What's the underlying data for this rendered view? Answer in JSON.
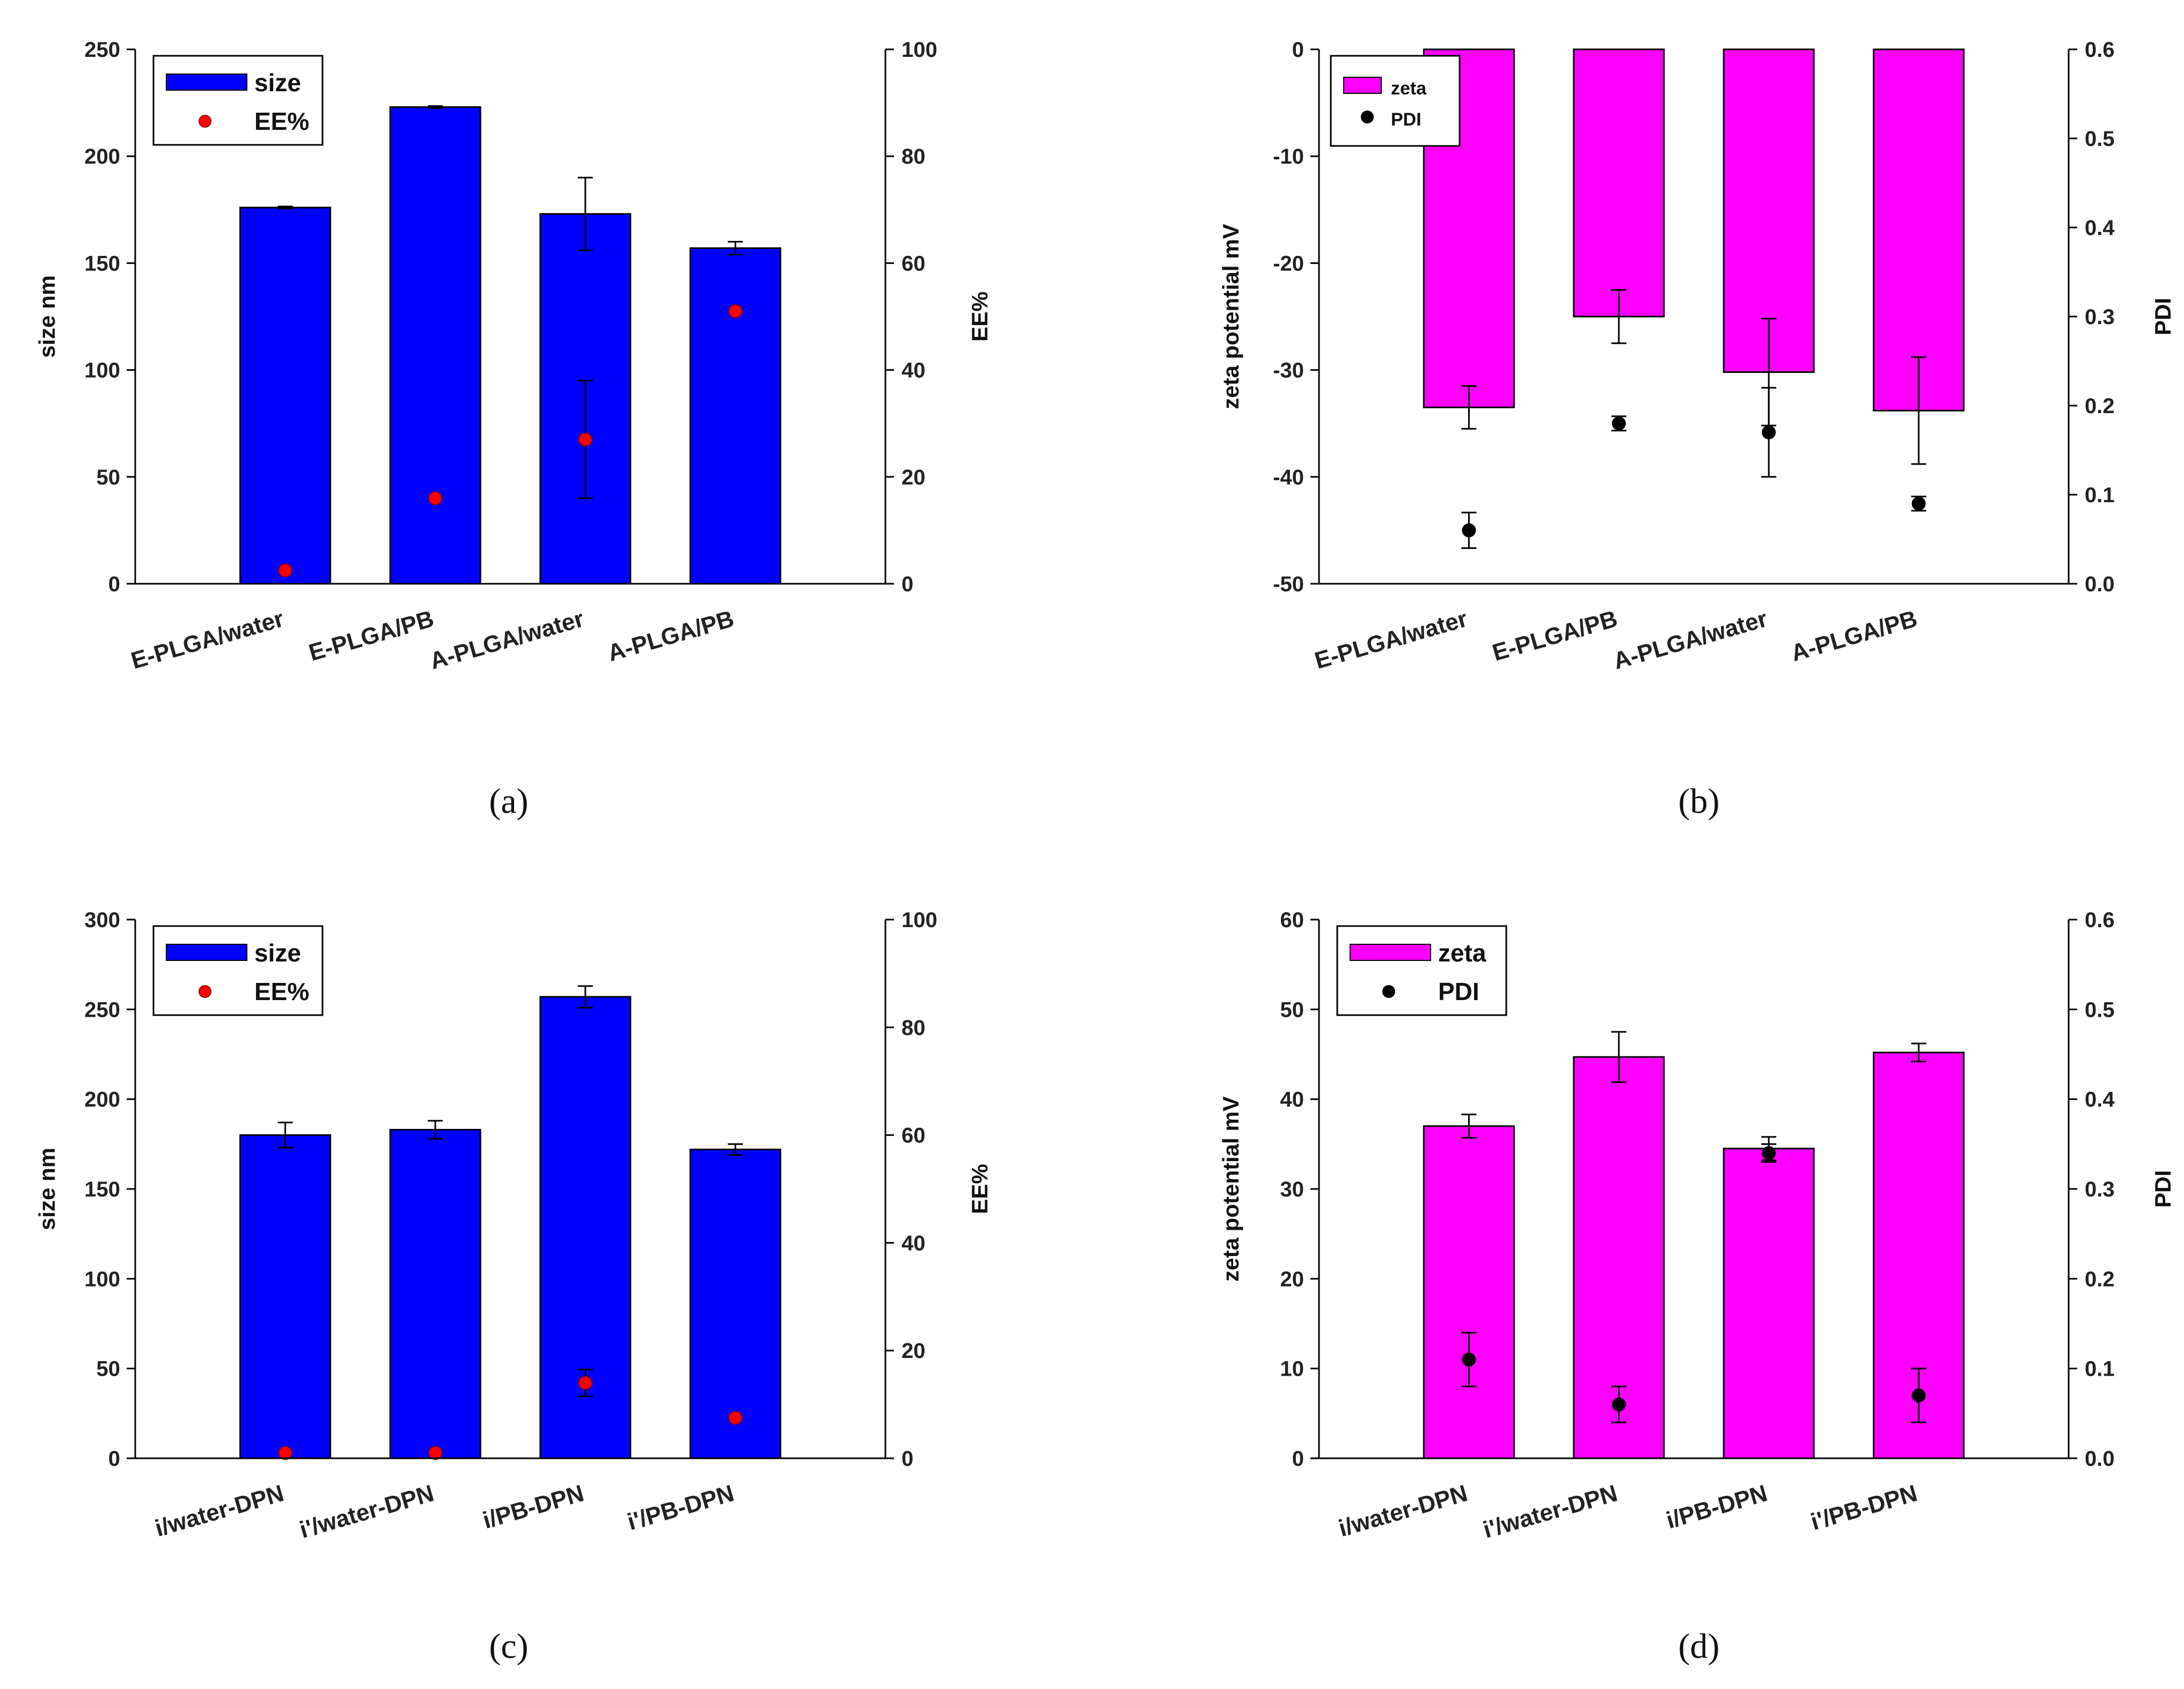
{
  "figure": {
    "panel_labels": [
      "(a)",
      "(b)",
      "(c)",
      "(d)"
    ]
  },
  "chart_data": [
    {
      "panel": "(a)",
      "type": "bar",
      "categories": [
        "E-PLGA/water",
        "E-PLGA/PB",
        "A-PLGA/water",
        "A-PLGA/PB"
      ],
      "series": [
        {
          "name": "size",
          "kind": "bar",
          "axis": "left",
          "color": "#0000ff",
          "values": [
            176,
            223,
            173,
            157
          ],
          "errors": [
            0.5,
            0.5,
            17,
            3
          ]
        },
        {
          "name": "EE%",
          "kind": "scatter",
          "axis": "right",
          "color": "#ff0000",
          "values": [
            2.5,
            16,
            27,
            51
          ],
          "errors": [
            0,
            0,
            11,
            0
          ]
        }
      ],
      "ylabel": "size nm",
      "y2label": "EE%",
      "ylim": [
        0,
        250
      ],
      "y_ticks": [
        0,
        50,
        100,
        150,
        200,
        250
      ],
      "y2lim": [
        0,
        100
      ],
      "y2_ticks": [
        0,
        20,
        40,
        60,
        80,
        100
      ],
      "legend": [
        "size",
        "EE%"
      ],
      "legend_position": "top-left",
      "legend_size": "large"
    },
    {
      "panel": "(b)",
      "type": "bar",
      "categories": [
        "E-PLGA/water",
        "E-PLGA/PB",
        "A-PLGA/water",
        "A-PLGA/PB"
      ],
      "series": [
        {
          "name": "zeta",
          "kind": "bar",
          "axis": "left",
          "color": "#ff00ff",
          "values": [
            -33.5,
            -25,
            -30.2,
            -33.8
          ],
          "errors": [
            2,
            2.5,
            5,
            5
          ]
        },
        {
          "name": "PDI",
          "kind": "scatter",
          "axis": "right",
          "color": "#000000",
          "values": [
            0.06,
            0.18,
            0.17,
            0.09
          ],
          "errors": [
            0.02,
            0.008,
            0.05,
            0.008
          ]
        }
      ],
      "ylabel": "zeta potential mV",
      "y2label": "PDI",
      "ylim": [
        -50,
        0
      ],
      "y_ticks": [
        -50,
        -40,
        -30,
        -20,
        -10,
        0
      ],
      "y2lim": [
        0,
        0.6
      ],
      "y2_ticks": [
        "0.0",
        "0.1",
        "0.2",
        "0.3",
        "0.4",
        "0.5",
        "0.6"
      ],
      "legend": [
        "zeta",
        "PDI"
      ],
      "legend_position": "top-left",
      "legend_size": "small"
    },
    {
      "panel": "(c)",
      "type": "bar",
      "categories": [
        "i/water-DPN",
        "i'/water-DPN",
        "i/PB-DPN",
        "i'/PB-DPN"
      ],
      "series": [
        {
          "name": "size",
          "kind": "bar",
          "axis": "left",
          "color": "#0000ff",
          "values": [
            180,
            183,
            257,
            172
          ],
          "errors": [
            7,
            5,
            6,
            3
          ]
        },
        {
          "name": "EE%",
          "kind": "scatter",
          "axis": "right",
          "color": "#ff0000",
          "values": [
            1,
            1,
            14,
            7.5
          ],
          "errors": [
            0,
            0,
            2.5,
            0
          ]
        }
      ],
      "ylabel": "size nm",
      "y2label": "EE%",
      "ylim": [
        0,
        300
      ],
      "y_ticks": [
        0,
        50,
        100,
        150,
        200,
        250,
        300
      ],
      "y2lim": [
        0,
        100
      ],
      "y2_ticks": [
        0,
        20,
        40,
        60,
        80,
        100
      ],
      "legend": [
        "size",
        "EE%"
      ],
      "legend_position": "top-left",
      "legend_size": "large"
    },
    {
      "panel": "(d)",
      "type": "bar",
      "categories": [
        "i/water-DPN",
        "i'/water-DPN",
        "i/PB-DPN",
        "i'/PB-DPN"
      ],
      "series": [
        {
          "name": "zeta",
          "kind": "bar",
          "axis": "left",
          "color": "#ff00ff",
          "values": [
            37,
            44.7,
            34.5,
            45.2
          ],
          "errors": [
            1.3,
            2.8,
            1.3,
            1
          ]
        },
        {
          "name": "PDI",
          "kind": "scatter",
          "axis": "right",
          "color": "#000000",
          "values": [
            0.11,
            0.06,
            0.34,
            0.07
          ],
          "errors": [
            0.03,
            0.02,
            0.01,
            0.03
          ]
        }
      ],
      "ylabel": "zeta potential mV",
      "y2label": "PDI",
      "ylim": [
        0,
        60
      ],
      "y_ticks": [
        0,
        10,
        20,
        30,
        40,
        50,
        60
      ],
      "y2lim": [
        0,
        0.6
      ],
      "y2_ticks": [
        "0.0",
        "0.1",
        "0.2",
        "0.3",
        "0.4",
        "0.5",
        "0.6"
      ],
      "legend": [
        "zeta",
        "PDI"
      ],
      "legend_position": "top-left",
      "legend_size": "large"
    }
  ]
}
